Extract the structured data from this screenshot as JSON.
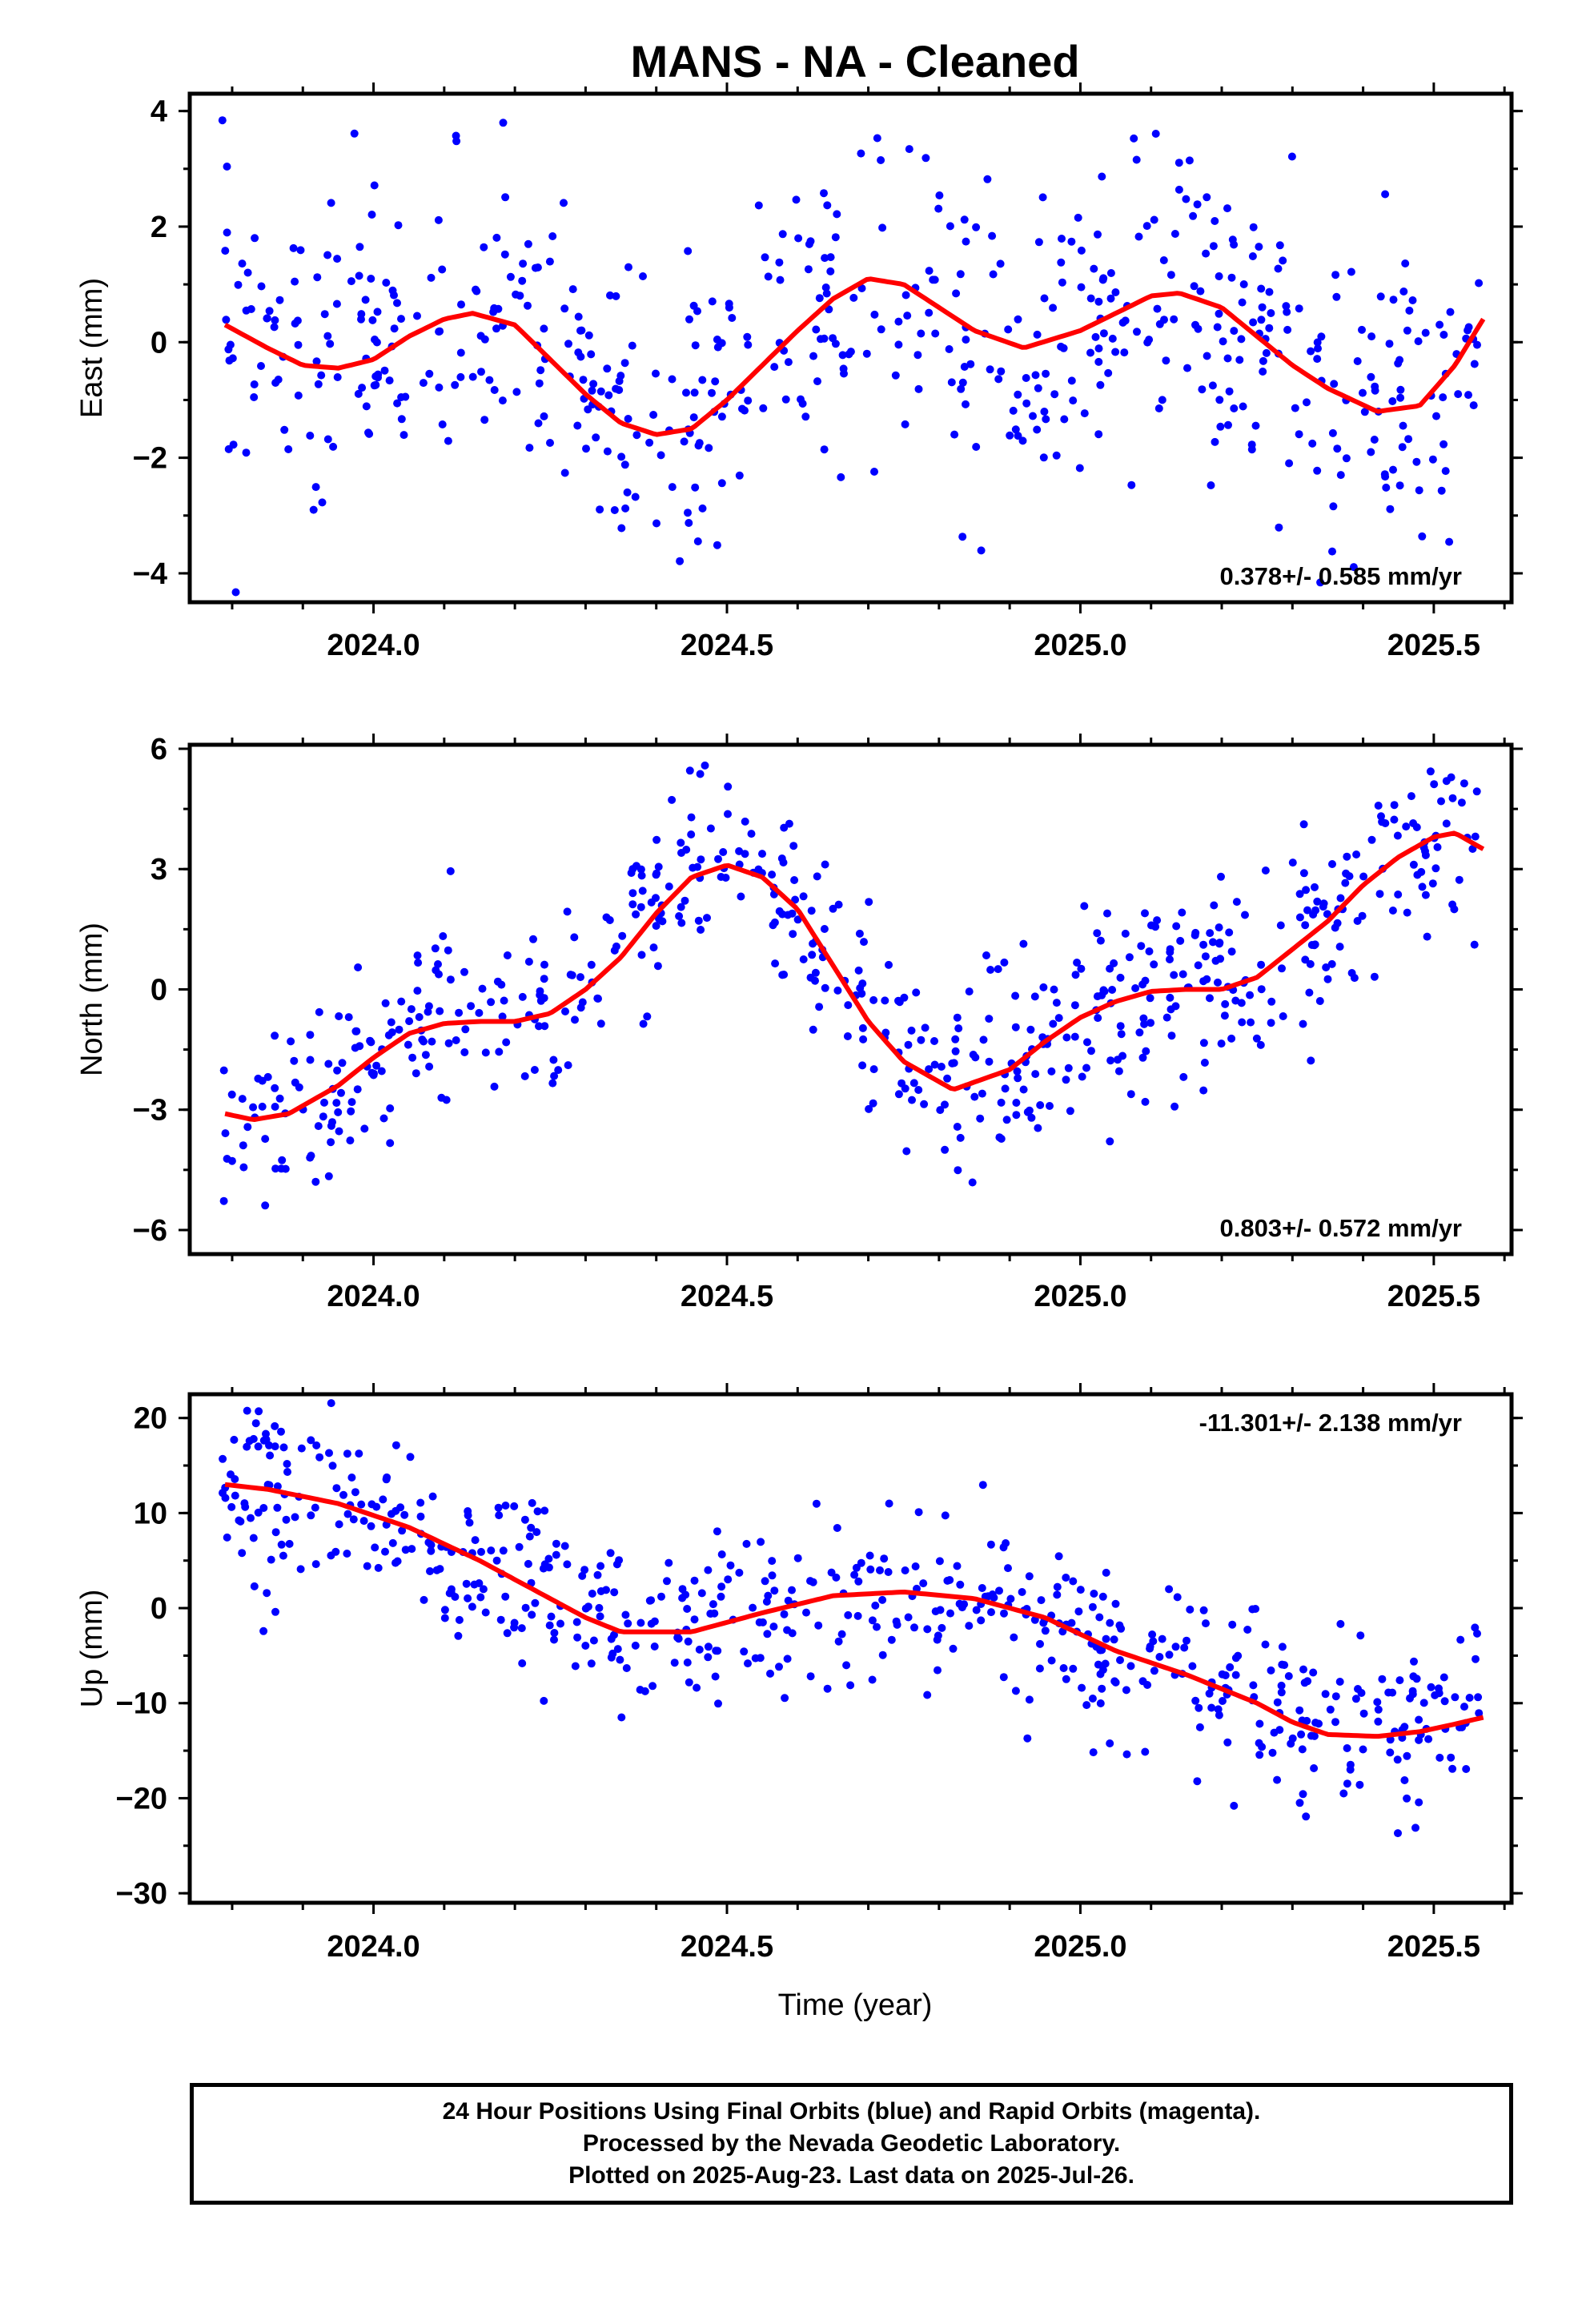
{
  "chart_data": {
    "type": "scatter",
    "title": "MANS  - NA - Cleaned",
    "x_range": [
      2023.74,
      2025.61
    ],
    "x_ticks": [
      "2024.0",
      "2024.5",
      "2025.0",
      "2025.5"
    ],
    "xlabel": "Time (year)",
    "series_colors": {
      "points": "#0000ff",
      "fit": "#ff0000"
    },
    "panels": [
      {
        "name": "east",
        "ylabel": "East (mm)",
        "ylim": [
          -4.5,
          4.3
        ],
        "y_ticks": [
          4,
          2,
          0,
          -2,
          -4
        ],
        "rate_label": "0.378+/- 0.585 mm/yr",
        "rate_position": "bottom-right",
        "fit_x": [
          2023.79,
          2023.85,
          2023.9,
          2023.95,
          2024.0,
          2024.05,
          2024.1,
          2024.14,
          2024.2,
          2024.25,
          2024.3,
          2024.35,
          2024.4,
          2024.45,
          2024.5,
          2024.55,
          2024.6,
          2024.65,
          2024.7,
          2024.75,
          2024.8,
          2024.85,
          2024.92,
          2025.0,
          2025.05,
          2025.1,
          2025.14,
          2025.2,
          2025.25,
          2025.3,
          2025.35,
          2025.42,
          2025.48,
          2025.53,
          2025.57
        ],
        "fit_y": [
          0.3,
          -0.1,
          -0.4,
          -0.45,
          -0.3,
          0.1,
          0.4,
          0.5,
          0.3,
          -0.3,
          -0.9,
          -1.4,
          -1.6,
          -1.5,
          -1.0,
          -0.4,
          0.2,
          0.75,
          1.1,
          1.0,
          0.6,
          0.2,
          -0.1,
          0.2,
          0.5,
          0.8,
          0.85,
          0.6,
          0.1,
          -0.4,
          -0.8,
          -1.2,
          -1.1,
          -0.4,
          0.4
        ],
        "points_summary": {
          "count": 600,
          "spread_mm": 1.3,
          "color": "blue"
        }
      },
      {
        "name": "north",
        "ylabel": "North (mm)",
        "ylim": [
          -6.6,
          6.1
        ],
        "y_ticks": [
          6,
          3,
          0,
          -3,
          -6
        ],
        "rate_label": "0.803+/- 0.572 mm/yr",
        "rate_position": "bottom-right",
        "fit_x": [
          2023.79,
          2023.83,
          2023.88,
          2023.95,
          2024.0,
          2024.05,
          2024.1,
          2024.15,
          2024.2,
          2024.25,
          2024.3,
          2024.35,
          2024.4,
          2024.45,
          2024.5,
          2024.55,
          2024.6,
          2024.65,
          2024.7,
          2024.75,
          2024.82,
          2024.9,
          2024.95,
          2025.0,
          2025.05,
          2025.1,
          2025.15,
          2025.2,
          2025.25,
          2025.3,
          2025.35,
          2025.4,
          2025.45,
          2025.5,
          2025.53,
          2025.57
        ],
        "fit_y": [
          -3.1,
          -3.25,
          -3.1,
          -2.4,
          -1.7,
          -1.1,
          -0.85,
          -0.8,
          -0.8,
          -0.6,
          0.0,
          0.8,
          1.9,
          2.8,
          3.1,
          2.8,
          2.0,
          0.6,
          -0.8,
          -1.8,
          -2.5,
          -2.0,
          -1.3,
          -0.7,
          -0.3,
          -0.05,
          0.0,
          0.0,
          0.3,
          1.0,
          1.7,
          2.6,
          3.3,
          3.8,
          3.9,
          3.5
        ],
        "points_summary": {
          "count": 600,
          "spread_mm": 1.2,
          "color": "blue"
        }
      },
      {
        "name": "up",
        "ylabel": "Up (mm)",
        "ylim": [
          -31,
          22.5
        ],
        "y_ticks": [
          20,
          10,
          0,
          -10,
          -20,
          -30
        ],
        "rate_label": "-11.301+/- 2.138 mm/yr",
        "rate_position": "top-right",
        "fit_x": [
          2023.79,
          2023.85,
          2023.95,
          2024.05,
          2024.15,
          2024.25,
          2024.3,
          2024.35,
          2024.45,
          2024.55,
          2024.65,
          2024.75,
          2024.85,
          2024.95,
          2025.05,
          2025.15,
          2025.25,
          2025.3,
          2025.35,
          2025.42,
          2025.48,
          2025.53,
          2025.57
        ],
        "fit_y": [
          13,
          12.5,
          11,
          8.5,
          5,
          1,
          -1,
          -2.5,
          -2.5,
          -0.5,
          1.3,
          1.7,
          1.0,
          -1.0,
          -4.5,
          -7,
          -10,
          -12,
          -13.3,
          -13.5,
          -13,
          -12.2,
          -11.5
        ],
        "points_summary": {
          "count": 600,
          "spread_mm": 4.5,
          "color": "blue"
        }
      }
    ]
  },
  "footer": {
    "line1": "24 Hour Positions Using Final Orbits (blue) and Rapid Orbits (magenta).",
    "line2": "Processed by the Nevada Geodetic Laboratory.",
    "line3": "Plotted on 2025-Aug-23. Last data on 2025-Jul-26."
  }
}
